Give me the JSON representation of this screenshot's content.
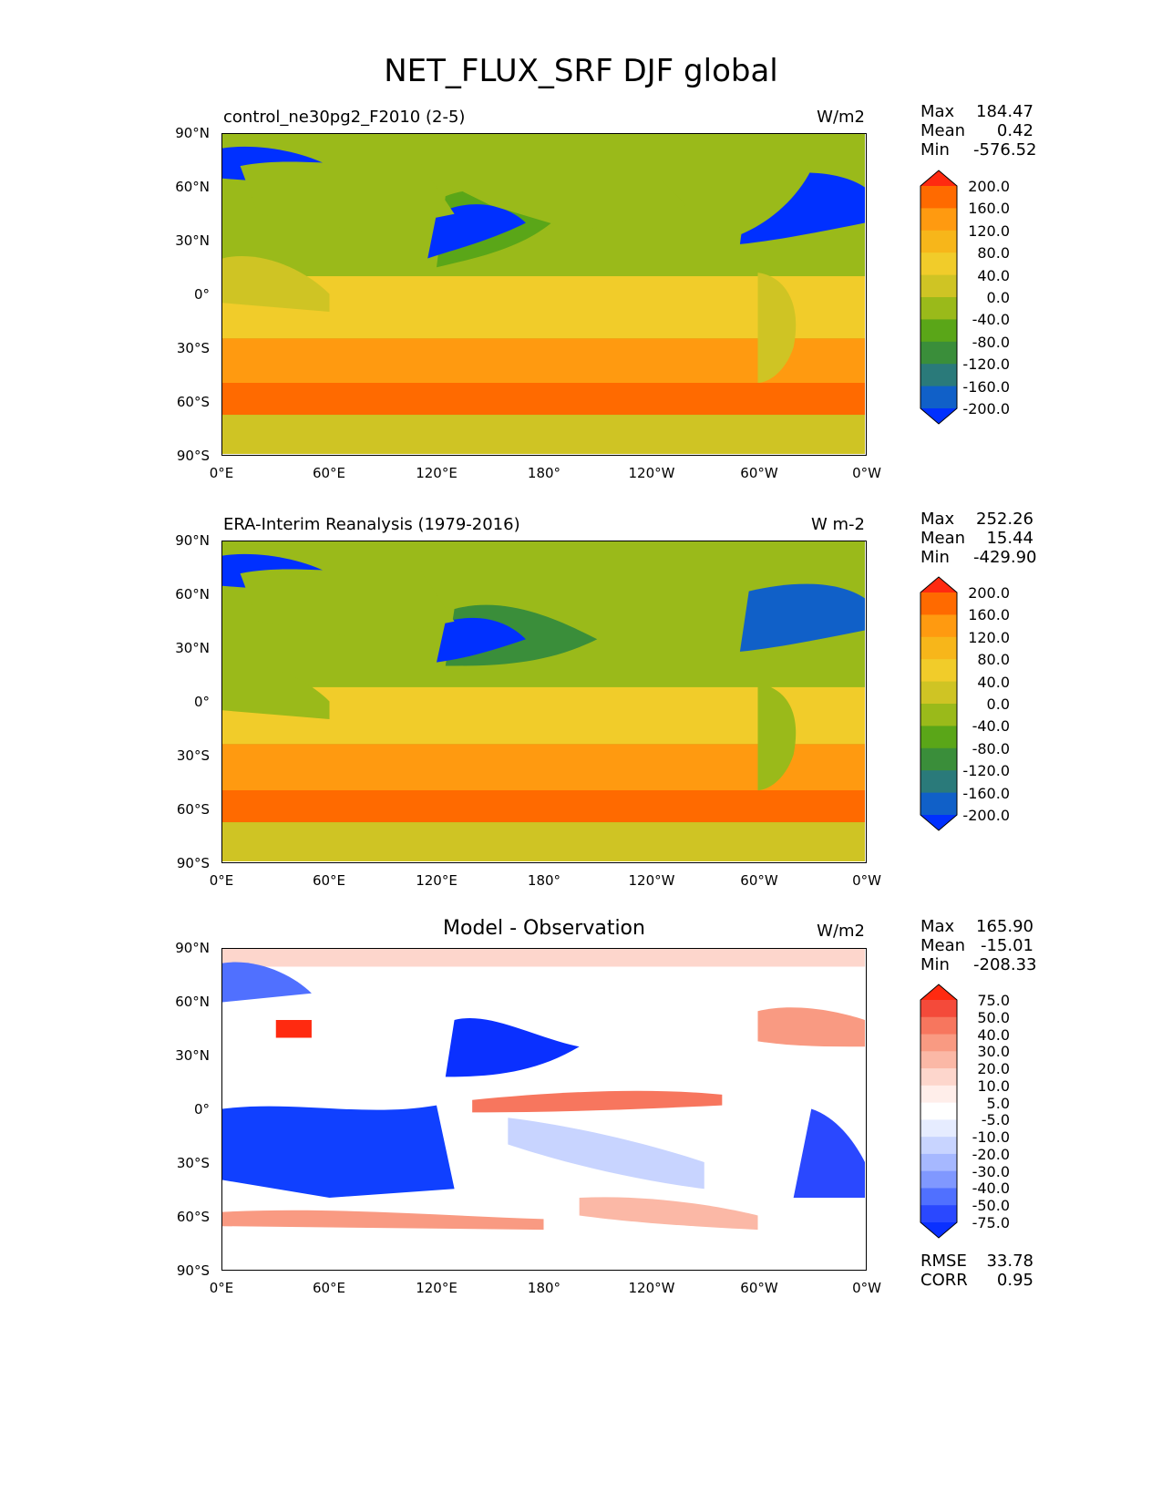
{
  "title": "NET_FLUX_SRF DJF global",
  "axes": {
    "lat_ticks": [
      "90°N",
      "60°N",
      "30°N",
      "0°",
      "30°S",
      "60°S",
      "90°S"
    ],
    "lon_ticks": [
      "0°E",
      "60°E",
      "120°E",
      "180°",
      "120°W",
      "60°W",
      "0°W"
    ]
  },
  "panels": [
    {
      "name": "control_ne30pg2_F2010 (2-5)",
      "center_title": "",
      "units": "W/m2",
      "stats": {
        "max_label": "Max",
        "max": "184.47",
        "mean_label": "Mean",
        "mean": "0.42",
        "min_label": "Min",
        "min": "-576.52"
      },
      "colorbar": {
        "levels": [
          "200.0",
          "160.0",
          "120.0",
          "80.0",
          "40.0",
          "0.0",
          "-40.0",
          "-80.0",
          "-120.0",
          "-160.0",
          "-200.0"
        ],
        "colors": [
          "#ff2a10",
          "#ff6a00",
          "#ff9a10",
          "#f7b61a",
          "#f1cc2a",
          "#cfc424",
          "#9aba1a",
          "#5aa618",
          "#3a8e3a",
          "#2a7a7a",
          "#1060c8",
          "#0030ff"
        ]
      }
    },
    {
      "name": "ERA-Interim Reanalysis (1979-2016)",
      "center_title": "",
      "units": "W m-2",
      "stats": {
        "max_label": "Max",
        "max": "252.26",
        "mean_label": "Mean",
        "mean": "15.44",
        "min_label": "Min",
        "min": "-429.90"
      },
      "colorbar": {
        "levels": [
          "200.0",
          "160.0",
          "120.0",
          "80.0",
          "40.0",
          "0.0",
          "-40.0",
          "-80.0",
          "-120.0",
          "-160.0",
          "-200.0"
        ],
        "colors": [
          "#ff2a10",
          "#ff6a00",
          "#ff9a10",
          "#f7b61a",
          "#f1cc2a",
          "#cfc424",
          "#9aba1a",
          "#5aa618",
          "#3a8e3a",
          "#2a7a7a",
          "#1060c8",
          "#0030ff"
        ]
      }
    },
    {
      "name": "",
      "center_title": "Model - Observation",
      "units": "W/m2",
      "stats": {
        "max_label": "Max",
        "max": "165.90",
        "mean_label": "Mean",
        "mean": "-15.01",
        "min_label": "Min",
        "min": "-208.33"
      },
      "colorbar": {
        "levels": [
          "75.0",
          "50.0",
          "40.0",
          "30.0",
          "20.0",
          "10.0",
          "5.0",
          "-5.0",
          "-10.0",
          "-20.0",
          "-30.0",
          "-40.0",
          "-50.0",
          "-75.0"
        ],
        "colors": [
          "#ff2a10",
          "#f44a3a",
          "#f7765e",
          "#f99a82",
          "#fbb8a6",
          "#fdd6cc",
          "#ffeeea",
          "#ffffff",
          "#e6ecff",
          "#c8d4ff",
          "#a6b8ff",
          "#8098ff",
          "#5070ff",
          "#2a48ff",
          "#0a30ff"
        ]
      },
      "metrics": {
        "rmse_label": "RMSE",
        "rmse": "33.78",
        "corr_label": "CORR",
        "corr": "0.95"
      }
    }
  ]
}
